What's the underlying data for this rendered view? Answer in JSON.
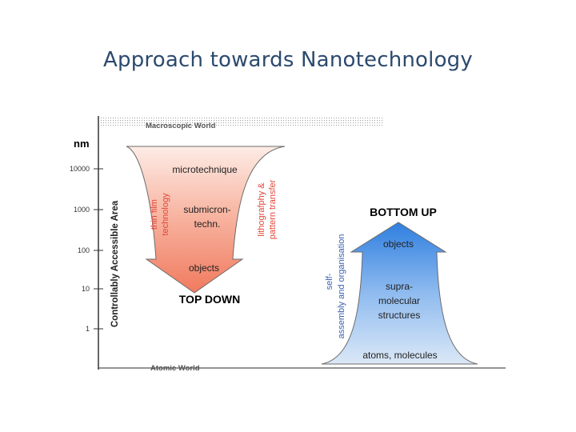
{
  "title": "Approach towards Nanotechnology",
  "labels": {
    "macroscopic": "Macroscopic World",
    "atomic": "Atomic World",
    "unit": "nm",
    "axis": "Controllably Accessible Area",
    "ticks": [
      "10000",
      "1000",
      "100",
      "10",
      "1"
    ]
  },
  "top_down": {
    "title": "TOP DOWN",
    "stages": [
      "microtechnique",
      "submicron-",
      "techn.",
      "objects"
    ],
    "left_side": [
      "thin film",
      "technology"
    ],
    "right_side": [
      "lithografphy &",
      "pattern transfer"
    ]
  },
  "bottom_up": {
    "title": "BOTTOM UP",
    "stages": [
      "objects",
      "supra-",
      "molecular",
      "structures",
      "atoms, molecules"
    ],
    "side": [
      "self-",
      "assembly and organisation"
    ]
  },
  "colors": {
    "title": "#2c4a6e",
    "top_down_light": "#fdece6",
    "top_down_dark": "#f07a5e",
    "bottom_up_light": "#dbe8f7",
    "bottom_up_dark": "#2f7fe0",
    "side_top": "#e2453a",
    "side_bottom": "#3a5fb0"
  }
}
